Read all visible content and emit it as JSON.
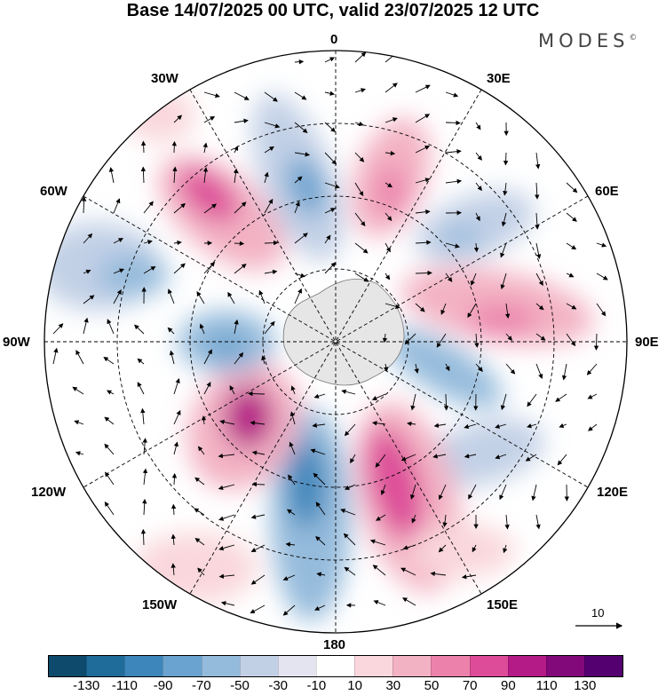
{
  "title": "Base 14/07/2025 00 UTC, valid 23/07/2025 12 UTC",
  "brand": "MODES",
  "brand_mark": "©",
  "longitude_labels": {
    "lon_0": "0",
    "lon_30e": "30E",
    "lon_60e": "60E",
    "lon_90e": "90E",
    "lon_120e": "120E",
    "lon_150e": "150E",
    "lon_180": "180",
    "lon_150w": "150W",
    "lon_120w": "120W",
    "lon_90w": "90W",
    "lon_60w": "60W",
    "lon_30w": "30W"
  },
  "reference_vector": {
    "value": "10"
  },
  "colorbar": {
    "colors": [
      "#0d4a6b",
      "#1f6b9a",
      "#3d86bb",
      "#6aa3cf",
      "#95bbdc",
      "#c2d0e6",
      "#e4e4f0",
      "#ffffff",
      "#f9d7dc",
      "#f3b2c4",
      "#ec82ab",
      "#dd4c98",
      "#b51b86",
      "#82097a",
      "#540070"
    ],
    "labels": [
      "-130",
      "-110",
      "-90",
      "-70",
      "-50",
      "-30",
      "-10",
      "10",
      "30",
      "50",
      "70",
      "90",
      "110",
      "130"
    ]
  },
  "colors": {
    "antarctica": "#e6e6e6",
    "frame": "#000000",
    "grid": "#000000"
  }
}
